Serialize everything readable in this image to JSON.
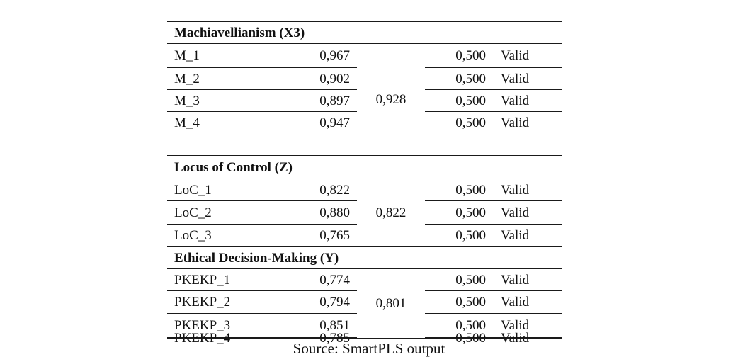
{
  "sections": [
    {
      "title": "Machiavellianism (X3)",
      "group_value": "0,928",
      "rows": [
        {
          "item": "M_1",
          "loading": "0,967",
          "threshold": "0,500",
          "status": "Valid"
        },
        {
          "item": "M_2",
          "loading": "0,902",
          "threshold": "0,500",
          "status": "Valid"
        },
        {
          "item": "M_3",
          "loading": "0,897",
          "threshold": "0,500",
          "status": "Valid"
        },
        {
          "item": "M_4",
          "loading": "0,947",
          "threshold": "0,500",
          "status": "Valid"
        }
      ]
    },
    {
      "title": "Locus of Control (Z)",
      "group_value": "0,822",
      "rows": [
        {
          "item": "LoC_1",
          "loading": "0,822",
          "threshold": "0,500",
          "status": "Valid"
        },
        {
          "item": "LoC_2",
          "loading": "0,880",
          "threshold": "0,500",
          "status": "Valid"
        },
        {
          "item": "LoC_3",
          "loading": "0,765",
          "threshold": "0,500",
          "status": "Valid"
        }
      ]
    },
    {
      "title": "Ethical Decision-Making (Y)",
      "group_value": "0,801",
      "rows": [
        {
          "item": "PKEKP_1",
          "loading": "0,774",
          "threshold": "0,500",
          "status": "Valid"
        },
        {
          "item": "PKEKP_2",
          "loading": "0,794",
          "threshold": "0,500",
          "status": "Valid"
        },
        {
          "item": "PKEKP_3",
          "loading": "0,851",
          "threshold": "0,500",
          "status": "Valid"
        },
        {
          "item": "PKEKP_4",
          "loading": "0,785",
          "threshold": "0,500",
          "status": "Valid"
        }
      ]
    }
  ],
  "source": "Source: SmartPLS output"
}
